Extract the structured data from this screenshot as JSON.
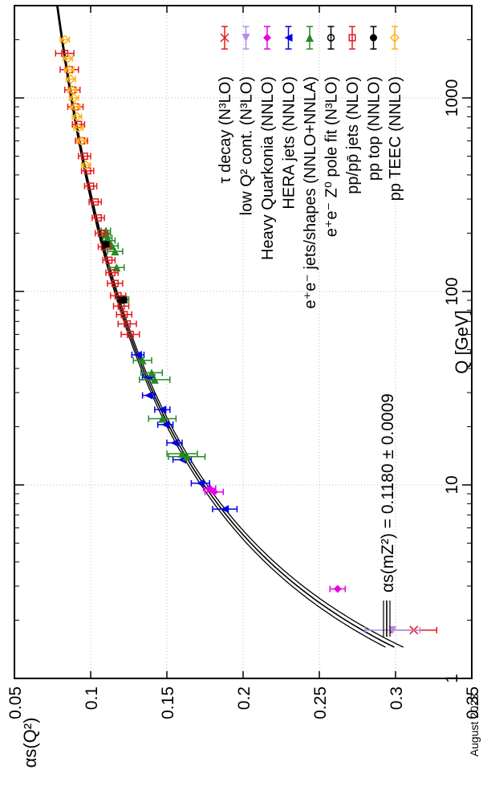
{
  "chart_data": {
    "type": "scatter",
    "orientation": "rotated 90 degrees clockwise",
    "xlabel": "Q [GeV]",
    "ylabel": "αs(Q²)",
    "x_scale": "log",
    "xlim": [
      1,
      3000
    ],
    "ylim": [
      0.05,
      0.35
    ],
    "x_ticks": [
      "1",
      "10",
      "100",
      "1000"
    ],
    "y_ticks": [
      "0.05",
      "0.1",
      "0.15",
      "0.2",
      "0.25",
      "0.3",
      "0.35"
    ],
    "grid": true,
    "legend_position": "top-right",
    "footnote": "August 2023",
    "band_label": "αs(mZ²) = 0.1180 ± 0.0009",
    "band": {
      "alpha_mz": 0.118,
      "uncertainty": 0.0009,
      "mz": 91.19,
      "color": "#000000"
    },
    "series": [
      {
        "name": "τ decay (N³LO)",
        "color": "#e41a1c",
        "marker": "cross",
        "points": [
          [
            1.777,
            0.312,
            0.015
          ]
        ]
      },
      {
        "name": "low Q² cont. (N³LO)",
        "color": "#b38de8",
        "marker": "triangle-left",
        "points": [
          [
            1.777,
            0.298,
            0.018
          ]
        ]
      },
      {
        "name": "Heavy Quarkonia (NNLO)",
        "color": "#e600e6",
        "marker": "diamond",
        "points": [
          [
            2.9,
            0.262,
            0.005
          ],
          [
            9.2,
            0.181,
            0.006
          ],
          [
            9.6,
            0.178,
            0.004
          ]
        ]
      },
      {
        "name": "HERA jets (NNLO)",
        "color": "#0000e6",
        "marker": "triangle-down",
        "points": [
          [
            7.5,
            0.188,
            0.008
          ],
          [
            10.2,
            0.172,
            0.006
          ],
          [
            13.5,
            0.16,
            0.006
          ],
          [
            16.5,
            0.155,
            0.005
          ],
          [
            20.5,
            0.149,
            0.005
          ],
          [
            24.5,
            0.147,
            0.005
          ],
          [
            29.0,
            0.138,
            0.004
          ],
          [
            36.0,
            0.138,
            0.004
          ],
          [
            47.0,
            0.131,
            0.004
          ]
        ]
      },
      {
        "name": "e⁺e⁻ jets/shapes (NNLO+NNLA)",
        "color": "#228b22",
        "marker": "triangle-right",
        "points": [
          [
            14.0,
            0.163,
            0.012
          ],
          [
            14.5,
            0.16,
            0.01
          ],
          [
            22.0,
            0.147,
            0.009
          ],
          [
            35.0,
            0.142,
            0.01
          ],
          [
            38.0,
            0.14,
            0.007
          ],
          [
            44.0,
            0.134,
            0.006
          ],
          [
            91.0,
            0.122,
            0.003
          ],
          [
            133.0,
            0.117,
            0.005
          ],
          [
            161.0,
            0.116,
            0.005
          ],
          [
            172.0,
            0.114,
            0.004
          ],
          [
            183.0,
            0.112,
            0.004
          ],
          [
            189.0,
            0.111,
            0.003
          ],
          [
            200.0,
            0.11,
            0.003
          ],
          [
            206.0,
            0.11,
            0.003
          ]
        ]
      },
      {
        "name": "e⁺e⁻ Z⁰ pole fit (N³LO)",
        "color": "#000000",
        "marker": "circle-open",
        "points": [
          [
            91.19,
            0.1208,
            0.0028
          ]
        ]
      },
      {
        "name": "pp/pp̄ jets (NLO)",
        "color": "#e41a1c",
        "marker": "square-open",
        "points": [
          [
            60.0,
            0.126,
            0.006
          ],
          [
            68.0,
            0.124,
            0.006
          ],
          [
            76.0,
            0.122,
            0.005
          ],
          [
            84.0,
            0.12,
            0.005
          ],
          [
            95.0,
            0.118,
            0.005
          ],
          [
            110.0,
            0.116,
            0.005
          ],
          [
            125.0,
            0.114,
            0.004
          ],
          [
            145.0,
            0.112,
            0.004
          ],
          [
            170.0,
            0.109,
            0.004
          ],
          [
            200.0,
            0.107,
            0.004
          ],
          [
            240.0,
            0.105,
            0.004
          ],
          [
            290.0,
            0.103,
            0.004
          ],
          [
            350.0,
            0.1,
            0.004
          ],
          [
            420.0,
            0.098,
            0.004
          ],
          [
            500.0,
            0.096,
            0.004
          ],
          [
            600.0,
            0.094,
            0.004
          ],
          [
            730.0,
            0.092,
            0.004
          ],
          [
            900.0,
            0.09,
            0.005
          ],
          [
            1100.0,
            0.088,
            0.005
          ],
          [
            1400.0,
            0.086,
            0.006
          ],
          [
            1700.0,
            0.083,
            0.006
          ]
        ]
      },
      {
        "name": "pp top (NNLO)",
        "color": "#000000",
        "marker": "circle-filled",
        "points": [
          [
            90.0,
            0.121,
            0.002
          ],
          [
            175.0,
            0.11,
            0.002
          ]
        ]
      },
      {
        "name": "pp TEEC (NNLO)",
        "color": "#ffb31a",
        "marker": "diamond-open",
        "points": [
          [
            450.0,
            0.097,
            0.003
          ],
          [
            600.0,
            0.094,
            0.003
          ],
          [
            700.0,
            0.092,
            0.003
          ],
          [
            800.0,
            0.091,
            0.003
          ],
          [
            900.0,
            0.09,
            0.003
          ],
          [
            1000.0,
            0.089,
            0.003
          ],
          [
            1100.0,
            0.088,
            0.003
          ],
          [
            1250.0,
            0.087,
            0.003
          ],
          [
            1400.0,
            0.086,
            0.003
          ],
          [
            1600.0,
            0.085,
            0.003
          ],
          [
            2000.0,
            0.083,
            0.003
          ]
        ]
      }
    ]
  }
}
